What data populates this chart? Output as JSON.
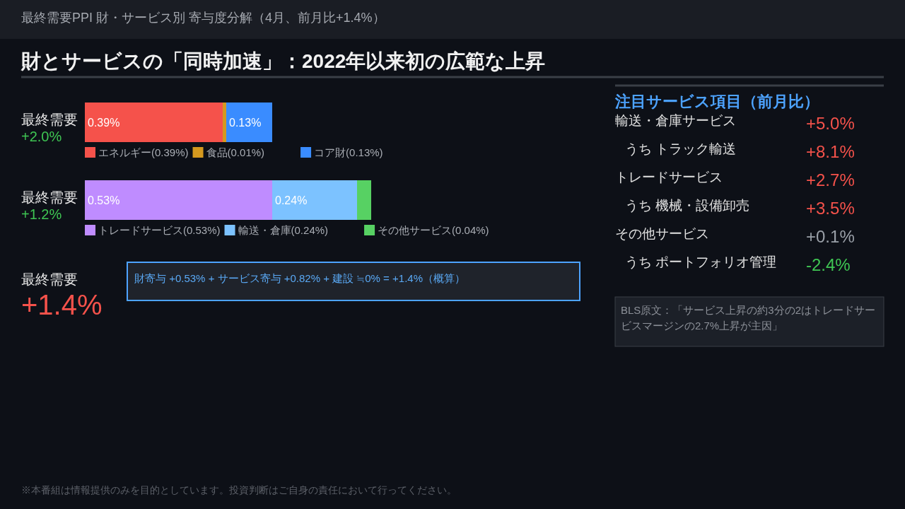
{
  "chart_data": [
    {
      "type": "bar",
      "orientation": "horizontal",
      "stacked": true,
      "title": "最終需要PPI  財・サービス別 寄与度分解（4月、前月比+1.4%）",
      "subtitle": "財とサービスの「同時加速」：2022年以来初の広範な上昇",
      "categories": [
        "最終需要",
        "最終需要"
      ],
      "series": [
        {
          "name": "エネルギー(0.39%)",
          "color": "#f5524b",
          "values": [
            0.39,
            null
          ],
          "value_labels": [
            "0.39%",
            null
          ]
        },
        {
          "name": "食品(0.01%)",
          "color": "#d4991f",
          "values": [
            0.01,
            null
          ]
        },
        {
          "name": "コア財(0.13%)",
          "color": "#3a8cff",
          "values": [
            0.13,
            null
          ],
          "value_labels": [
            "0.13%",
            null
          ]
        },
        {
          "name": "トレードサービス(0.53%)",
          "color": "#bf8cff",
          "values": [
            null,
            0.53
          ],
          "value_labels": [
            null,
            "0.53%"
          ]
        },
        {
          "name": "輸送・倉庫(0.24%)",
          "color": "#7cc2ff",
          "values": [
            null,
            0.24
          ],
          "value_labels": [
            null,
            "0.24%"
          ]
        },
        {
          "name": "その他サービス(0.04%)",
          "color": "#57d163",
          "values": [
            null,
            0.04
          ]
        }
      ],
      "legend": "bottom",
      "annotations": [
        "+2.0%",
        "+1.2%"
      ]
    },
    {
      "type": "other",
      "categories": [
        "最終需要"
      ],
      "values": [
        1.4
      ],
      "value_labels": [
        "+1.4%"
      ],
      "colors": [
        "#f5524b"
      ],
      "annotations": [
        "財寄与 +0.53%  +  サービス寄与 +0.82%  +  建設 ≒0%  =  +1.4%（概算）"
      ]
    },
    {
      "type": "other",
      "title": "注目サービス項目（前月比）",
      "categories": [
        "輸送・倉庫サービス",
        "うち トラック輸送",
        "トレードサービス",
        "うち 機械・設備卸売",
        "その他サービス",
        "うち ポートフォリオ管理"
      ],
      "values": [
        5.0,
        8.1,
        2.7,
        3.5,
        0.1,
        -2.4
      ],
      "value_labels": [
        "+5.0%",
        "+8.1%",
        "+2.7%",
        "+3.5%",
        "+0.1%",
        "-2.4%"
      ],
      "colors": [
        "#f5524b",
        "#f5524b",
        "#f5524b",
        "#f5524b",
        "#9aa0a8",
        "#3fc553"
      ],
      "annotations": [
        "BLS原文：「サービス上昇の約3分の2はトレードサービスマージンの2.7%上昇が主因」",
        "※本番組は情報提供のみを目的としています。投資判断はご自身の責任において行ってください。"
      ]
    }
  ]
}
